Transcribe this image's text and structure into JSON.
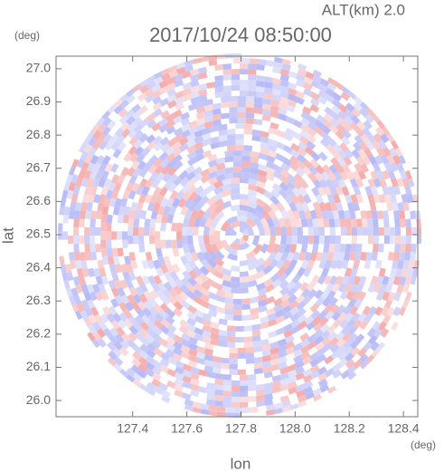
{
  "chart_data": {
    "type": "radar-ppi",
    "title": "2017/10/24 08:50:00",
    "subtitle": "ALT(km)  2.0",
    "x_label": "lon",
    "y_label": "lat",
    "x_unit": "(deg)",
    "y_unit": "(deg)",
    "xlim": [
      127.117,
      128.453
    ],
    "ylim": [
      25.951,
      27.038
    ],
    "xticks": [
      127.4,
      127.6,
      127.8,
      {
        "value": 128,
        "label": "128.0"
      },
      128.2,
      128.4
    ],
    "yticks": [
      {
        "value": 26,
        "label": "26.0"
      },
      26.1,
      26.2,
      26.3,
      26.4,
      26.5,
      26.6,
      26.7,
      26.8,
      26.9,
      {
        "value": 27,
        "label": "27.0"
      }
    ],
    "colors": [
      "#f4a7a7",
      "#b3b6f5"
    ]
  }
}
